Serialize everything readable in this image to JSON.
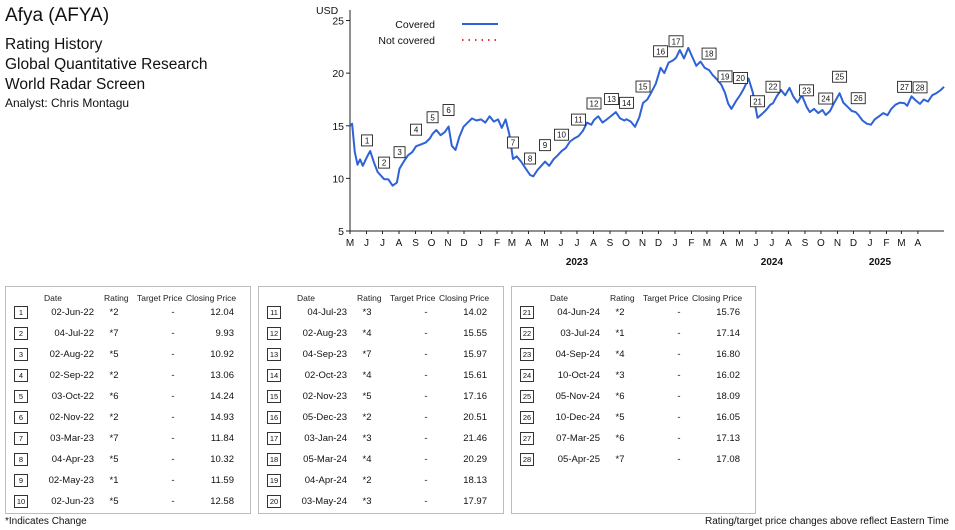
{
  "header": {
    "title": "Afya (AFYA)",
    "line1": "Rating History",
    "line2": "Global Quantitative Research",
    "line3": "World Radar Screen",
    "analyst": "Analyst: Chris Montagu"
  },
  "colors": {
    "covered": "#2e62d6",
    "not_covered": "#e53935",
    "axis": "#222222"
  },
  "chart_data": {
    "type": "line",
    "ylabel": "USD",
    "ylim": [
      5,
      26
    ],
    "yticks": [
      5,
      10,
      15,
      20,
      25
    ],
    "x_start": "2022-05-01",
    "x_end": "2025-05-20",
    "month_labels": [
      "M",
      "J",
      "J",
      "A",
      "S",
      "O",
      "N",
      "D",
      "J",
      "F",
      "M",
      "A",
      "M",
      "J",
      "J",
      "A",
      "S",
      "O",
      "N",
      "D",
      "J",
      "F",
      "M",
      "A",
      "M",
      "J",
      "J",
      "A",
      "S",
      "O",
      "N",
      "D",
      "J",
      "F",
      "M",
      "A"
    ],
    "year_labels": [
      {
        "label": "2023",
        "date": "2023-07-01"
      },
      {
        "label": "2024",
        "date": "2024-07-01"
      },
      {
        "label": "2025",
        "date": "2025-07-01"
      }
    ],
    "legend": {
      "covered": "Covered",
      "not_covered": "Not covered"
    },
    "series": [
      {
        "name": "Covered",
        "points": [
          [
            "2022-05-01",
            15.0
          ],
          [
            "2022-05-05",
            15.2
          ],
          [
            "2022-05-10",
            12.5
          ],
          [
            "2022-05-15",
            11.3
          ],
          [
            "2022-05-20",
            11.8
          ],
          [
            "2022-05-25",
            11.2
          ],
          [
            "2022-06-02",
            12.04
          ],
          [
            "2022-06-08",
            12.6
          ],
          [
            "2022-06-15",
            11.5
          ],
          [
            "2022-06-22",
            10.6
          ],
          [
            "2022-07-04",
            9.93
          ],
          [
            "2022-07-12",
            9.9
          ],
          [
            "2022-07-20",
            9.3
          ],
          [
            "2022-07-28",
            9.6
          ],
          [
            "2022-08-02",
            10.92
          ],
          [
            "2022-08-10",
            11.6
          ],
          [
            "2022-08-18",
            12.2
          ],
          [
            "2022-08-26",
            12.5
          ],
          [
            "2022-09-02",
            13.06
          ],
          [
            "2022-09-10",
            13.2
          ],
          [
            "2022-09-20",
            13.4
          ],
          [
            "2022-09-28",
            13.8
          ],
          [
            "2022-10-03",
            14.24
          ],
          [
            "2022-10-10",
            14.6
          ],
          [
            "2022-10-18",
            14.1
          ],
          [
            "2022-10-26",
            14.4
          ],
          [
            "2022-11-02",
            14.93
          ],
          [
            "2022-11-08",
            13.1
          ],
          [
            "2022-11-15",
            12.7
          ],
          [
            "2022-11-22",
            13.9
          ],
          [
            "2022-11-30",
            14.9
          ],
          [
            "2022-12-08",
            15.3
          ],
          [
            "2022-12-16",
            15.7
          ],
          [
            "2022-12-24",
            15.5
          ],
          [
            "2023-01-02",
            15.6
          ],
          [
            "2023-01-10",
            15.3
          ],
          [
            "2023-01-18",
            15.9
          ],
          [
            "2023-01-26",
            15.4
          ],
          [
            "2023-02-03",
            15.6
          ],
          [
            "2023-02-10",
            14.8
          ],
          [
            "2023-02-17",
            15.6
          ],
          [
            "2023-02-24",
            14.2
          ],
          [
            "2023-03-03",
            11.84
          ],
          [
            "2023-03-10",
            12.1
          ],
          [
            "2023-03-18",
            11.6
          ],
          [
            "2023-03-26",
            11.0
          ],
          [
            "2023-04-04",
            10.32
          ],
          [
            "2023-04-10",
            10.2
          ],
          [
            "2023-04-18",
            10.8
          ],
          [
            "2023-04-25",
            11.2
          ],
          [
            "2023-05-02",
            11.59
          ],
          [
            "2023-05-10",
            11.2
          ],
          [
            "2023-05-18",
            11.8
          ],
          [
            "2023-05-26",
            12.2
          ],
          [
            "2023-06-02",
            12.58
          ],
          [
            "2023-06-10",
            12.9
          ],
          [
            "2023-06-18",
            13.5
          ],
          [
            "2023-06-26",
            13.8
          ],
          [
            "2023-07-04",
            14.02
          ],
          [
            "2023-07-12",
            14.5
          ],
          [
            "2023-07-20",
            15.3
          ],
          [
            "2023-07-28",
            15.1
          ],
          [
            "2023-08-02",
            15.55
          ],
          [
            "2023-08-10",
            15.9
          ],
          [
            "2023-08-18",
            15.3
          ],
          [
            "2023-08-26",
            15.6
          ],
          [
            "2023-09-04",
            15.97
          ],
          [
            "2023-09-12",
            16.3
          ],
          [
            "2023-09-20",
            15.7
          ],
          [
            "2023-09-28",
            15.5
          ],
          [
            "2023-10-02",
            15.61
          ],
          [
            "2023-10-10",
            15.4
          ],
          [
            "2023-10-18",
            14.9
          ],
          [
            "2023-10-26",
            15.8
          ],
          [
            "2023-11-02",
            17.16
          ],
          [
            "2023-11-10",
            17.5
          ],
          [
            "2023-11-18",
            18.2
          ],
          [
            "2023-11-26",
            19.0
          ],
          [
            "2023-12-05",
            20.51
          ],
          [
            "2023-12-12",
            20.0
          ],
          [
            "2023-12-20",
            21.0
          ],
          [
            "2023-12-28",
            21.2
          ],
          [
            "2024-01-03",
            21.46
          ],
          [
            "2024-01-10",
            22.2
          ],
          [
            "2024-01-18",
            21.4
          ],
          [
            "2024-01-26",
            22.4
          ],
          [
            "2024-02-03",
            21.5
          ],
          [
            "2024-02-10",
            20.7
          ],
          [
            "2024-02-18",
            21.1
          ],
          [
            "2024-02-26",
            20.5
          ],
          [
            "2024-03-05",
            20.29
          ],
          [
            "2024-03-12",
            19.8
          ],
          [
            "2024-03-20",
            19.4
          ],
          [
            "2024-03-28",
            18.9
          ],
          [
            "2024-04-04",
            18.13
          ],
          [
            "2024-04-10",
            17.1
          ],
          [
            "2024-04-16",
            16.6
          ],
          [
            "2024-04-24",
            17.3
          ],
          [
            "2024-05-03",
            17.97
          ],
          [
            "2024-05-10",
            18.6
          ],
          [
            "2024-05-18",
            19.5
          ],
          [
            "2024-05-26",
            18.2
          ],
          [
            "2024-06-04",
            15.76
          ],
          [
            "2024-06-12",
            16.1
          ],
          [
            "2024-06-20",
            16.5
          ],
          [
            "2024-06-28",
            17.0
          ],
          [
            "2024-07-03",
            17.14
          ],
          [
            "2024-07-10",
            17.8
          ],
          [
            "2024-07-18",
            18.4
          ],
          [
            "2024-07-26",
            17.9
          ],
          [
            "2024-08-03",
            18.6
          ],
          [
            "2024-08-10",
            17.8
          ],
          [
            "2024-08-18",
            17.2
          ],
          [
            "2024-08-26",
            17.9
          ],
          [
            "2024-09-04",
            16.8
          ],
          [
            "2024-09-10",
            16.3
          ],
          [
            "2024-09-18",
            16.6
          ],
          [
            "2024-09-26",
            16.2
          ],
          [
            "2024-10-04",
            16.5
          ],
          [
            "2024-10-10",
            16.02
          ],
          [
            "2024-10-18",
            16.4
          ],
          [
            "2024-10-26",
            17.2
          ],
          [
            "2024-11-05",
            18.09
          ],
          [
            "2024-11-12",
            17.2
          ],
          [
            "2024-11-20",
            16.8
          ],
          [
            "2024-11-28",
            16.4
          ],
          [
            "2024-12-05",
            16.3
          ],
          [
            "2024-12-10",
            16.05
          ],
          [
            "2024-12-18",
            15.5
          ],
          [
            "2024-12-26",
            15.2
          ],
          [
            "2025-01-03",
            15.1
          ],
          [
            "2025-01-10",
            15.6
          ],
          [
            "2025-01-18",
            15.9
          ],
          [
            "2025-01-26",
            16.2
          ],
          [
            "2025-02-03",
            16.0
          ],
          [
            "2025-02-10",
            16.6
          ],
          [
            "2025-02-18",
            17.0
          ],
          [
            "2025-02-26",
            17.2
          ],
          [
            "2025-03-07",
            17.13
          ],
          [
            "2025-03-12",
            16.9
          ],
          [
            "2025-03-20",
            17.8
          ],
          [
            "2025-03-28",
            17.4
          ],
          [
            "2025-04-05",
            17.08
          ],
          [
            "2025-04-12",
            17.5
          ],
          [
            "2025-04-20",
            17.3
          ],
          [
            "2025-04-28",
            17.9
          ],
          [
            "2025-05-06",
            18.1
          ],
          [
            "2025-05-14",
            18.4
          ],
          [
            "2025-05-20",
            18.7
          ]
        ]
      },
      {
        "name": "Not covered",
        "points": []
      }
    ],
    "markers": [
      {
        "n": "1",
        "date": "2022-06-02",
        "value": 12.04
      },
      {
        "n": "2",
        "date": "2022-07-04",
        "value": 9.93
      },
      {
        "n": "3",
        "date": "2022-08-02",
        "value": 10.92
      },
      {
        "n": "4",
        "date": "2022-09-02",
        "value": 13.06
      },
      {
        "n": "5",
        "date": "2022-10-03",
        "value": 14.24
      },
      {
        "n": "6",
        "date": "2022-11-02",
        "value": 14.93
      },
      {
        "n": "7",
        "date": "2023-03-03",
        "value": 11.84
      },
      {
        "n": "8",
        "date": "2023-04-04",
        "value": 10.32
      },
      {
        "n": "9",
        "date": "2023-05-02",
        "value": 11.59
      },
      {
        "n": "10",
        "date": "2023-06-02",
        "value": 12.58
      },
      {
        "n": "11",
        "date": "2023-07-04",
        "value": 14.02
      },
      {
        "n": "12",
        "date": "2023-08-02",
        "value": 15.55
      },
      {
        "n": "13",
        "date": "2023-09-04",
        "value": 15.97
      },
      {
        "n": "14",
        "date": "2023-10-02",
        "value": 15.61
      },
      {
        "n": "15",
        "date": "2023-11-02",
        "value": 17.16
      },
      {
        "n": "16",
        "date": "2023-12-05",
        "value": 20.51
      },
      {
        "n": "17",
        "date": "2024-01-03",
        "value": 21.46
      },
      {
        "n": "18",
        "date": "2024-03-05",
        "value": 20.29
      },
      {
        "n": "19",
        "date": "2024-04-04",
        "value": 18.13
      },
      {
        "n": "20",
        "date": "2024-05-03",
        "value": 17.97
      },
      {
        "n": "21",
        "date": "2024-06-04",
        "value": 15.76
      },
      {
        "n": "22",
        "date": "2024-07-03",
        "value": 17.14
      },
      {
        "n": "23",
        "date": "2024-09-04",
        "value": 16.8
      },
      {
        "n": "24",
        "date": "2024-10-10",
        "value": 16.02
      },
      {
        "n": "25",
        "date": "2024-11-05",
        "value": 18.09
      },
      {
        "n": "26",
        "date": "2024-12-10",
        "value": 16.05
      },
      {
        "n": "27",
        "date": "2025-03-07",
        "value": 17.13
      },
      {
        "n": "28",
        "date": "2025-04-05",
        "value": 17.08
      }
    ]
  },
  "table_headers": {
    "date": "Date",
    "rating": "Rating",
    "target": "Target Price",
    "close": "Closing Price"
  },
  "tables": [
    [
      {
        "n": "1",
        "date": "02-Jun-22",
        "rating": "*2",
        "target": "-",
        "close": "12.04"
      },
      {
        "n": "2",
        "date": "04-Jul-22",
        "rating": "*7",
        "target": "-",
        "close": "9.93"
      },
      {
        "n": "3",
        "date": "02-Aug-22",
        "rating": "*5",
        "target": "-",
        "close": "10.92"
      },
      {
        "n": "4",
        "date": "02-Sep-22",
        "rating": "*2",
        "target": "-",
        "close": "13.06"
      },
      {
        "n": "5",
        "date": "03-Oct-22",
        "rating": "*6",
        "target": "-",
        "close": "14.24"
      },
      {
        "n": "6",
        "date": "02-Nov-22",
        "rating": "*2",
        "target": "-",
        "close": "14.93"
      },
      {
        "n": "7",
        "date": "03-Mar-23",
        "rating": "*7",
        "target": "-",
        "close": "11.84"
      },
      {
        "n": "8",
        "date": "04-Apr-23",
        "rating": "*5",
        "target": "-",
        "close": "10.32"
      },
      {
        "n": "9",
        "date": "02-May-23",
        "rating": "*1",
        "target": "-",
        "close": "11.59"
      },
      {
        "n": "10",
        "date": "02-Jun-23",
        "rating": "*5",
        "target": "-",
        "close": "12.58"
      }
    ],
    [
      {
        "n": "11",
        "date": "04-Jul-23",
        "rating": "*3",
        "target": "-",
        "close": "14.02"
      },
      {
        "n": "12",
        "date": "02-Aug-23",
        "rating": "*4",
        "target": "-",
        "close": "15.55"
      },
      {
        "n": "13",
        "date": "04-Sep-23",
        "rating": "*7",
        "target": "-",
        "close": "15.97"
      },
      {
        "n": "14",
        "date": "02-Oct-23",
        "rating": "*4",
        "target": "-",
        "close": "15.61"
      },
      {
        "n": "15",
        "date": "02-Nov-23",
        "rating": "*5",
        "target": "-",
        "close": "17.16"
      },
      {
        "n": "16",
        "date": "05-Dec-23",
        "rating": "*2",
        "target": "-",
        "close": "20.51"
      },
      {
        "n": "17",
        "date": "03-Jan-24",
        "rating": "*3",
        "target": "-",
        "close": "21.46"
      },
      {
        "n": "18",
        "date": "05-Mar-24",
        "rating": "*4",
        "target": "-",
        "close": "20.29"
      },
      {
        "n": "19",
        "date": "04-Apr-24",
        "rating": "*2",
        "target": "-",
        "close": "18.13"
      },
      {
        "n": "20",
        "date": "03-May-24",
        "rating": "*3",
        "target": "-",
        "close": "17.97"
      }
    ],
    [
      {
        "n": "21",
        "date": "04-Jun-24",
        "rating": "*2",
        "target": "-",
        "close": "15.76"
      },
      {
        "n": "22",
        "date": "03-Jul-24",
        "rating": "*1",
        "target": "-",
        "close": "17.14"
      },
      {
        "n": "23",
        "date": "04-Sep-24",
        "rating": "*4",
        "target": "-",
        "close": "16.80"
      },
      {
        "n": "24",
        "date": "10-Oct-24",
        "rating": "*3",
        "target": "-",
        "close": "16.02"
      },
      {
        "n": "25",
        "date": "05-Nov-24",
        "rating": "*6",
        "target": "-",
        "close": "18.09"
      },
      {
        "n": "26",
        "date": "10-Dec-24",
        "rating": "*5",
        "target": "-",
        "close": "16.05"
      },
      {
        "n": "27",
        "date": "07-Mar-25",
        "rating": "*6",
        "target": "-",
        "close": "17.13"
      },
      {
        "n": "28",
        "date": "05-Apr-25",
        "rating": "*7",
        "target": "-",
        "close": "17.08"
      }
    ]
  ],
  "footnotes": {
    "left": "*Indicates Change",
    "right": "Rating/target price changes above reflect Eastern Time"
  }
}
